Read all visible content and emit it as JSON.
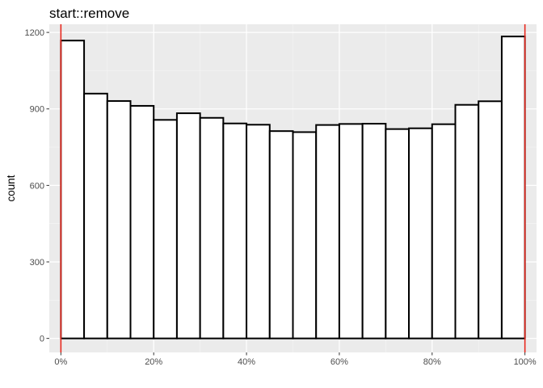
{
  "chart_data": {
    "type": "histogram",
    "title": "start::remove",
    "xlabel": "",
    "ylabel": "count",
    "xlim": [
      -0.025,
      1.025
    ],
    "ylim": [
      -55,
      1232
    ],
    "bin_width": 0.05,
    "bins": [
      {
        "x0": 0.0,
        "x1": 0.05,
        "count": 1168
      },
      {
        "x0": 0.05,
        "x1": 0.1,
        "count": 960
      },
      {
        "x0": 0.1,
        "x1": 0.15,
        "count": 931
      },
      {
        "x0": 0.15,
        "x1": 0.2,
        "count": 912
      },
      {
        "x0": 0.2,
        "x1": 0.25,
        "count": 857
      },
      {
        "x0": 0.25,
        "x1": 0.3,
        "count": 883
      },
      {
        "x0": 0.3,
        "x1": 0.35,
        "count": 865
      },
      {
        "x0": 0.35,
        "x1": 0.4,
        "count": 843
      },
      {
        "x0": 0.4,
        "x1": 0.45,
        "count": 838
      },
      {
        "x0": 0.45,
        "x1": 0.5,
        "count": 813
      },
      {
        "x0": 0.5,
        "x1": 0.55,
        "count": 809
      },
      {
        "x0": 0.55,
        "x1": 0.6,
        "count": 837
      },
      {
        "x0": 0.6,
        "x1": 0.65,
        "count": 841
      },
      {
        "x0": 0.65,
        "x1": 0.7,
        "count": 842
      },
      {
        "x0": 0.7,
        "x1": 0.75,
        "count": 821
      },
      {
        "x0": 0.75,
        "x1": 0.8,
        "count": 824
      },
      {
        "x0": 0.8,
        "x1": 0.85,
        "count": 840
      },
      {
        "x0": 0.85,
        "x1": 0.9,
        "count": 916
      },
      {
        "x0": 0.9,
        "x1": 0.95,
        "count": 930
      },
      {
        "x0": 0.95,
        "x1": 1.0,
        "count": 1184
      }
    ],
    "x_ticks": [
      {
        "value": 0.0,
        "label": "0%"
      },
      {
        "value": 0.2,
        "label": "20%"
      },
      {
        "value": 0.4,
        "label": "40%"
      },
      {
        "value": 0.6,
        "label": "60%"
      },
      {
        "value": 0.8,
        "label": "80%"
      },
      {
        "value": 1.0,
        "label": "100%"
      }
    ],
    "y_ticks": [
      {
        "value": 0,
        "label": "0"
      },
      {
        "value": 300,
        "label": "300"
      },
      {
        "value": 600,
        "label": "600"
      },
      {
        "value": 900,
        "label": "900"
      },
      {
        "value": 1200,
        "label": "1200"
      }
    ],
    "reference_lines": [
      {
        "axis": "x",
        "value": 0.0
      },
      {
        "axis": "x",
        "value": 1.0
      }
    ],
    "grid": true,
    "colors": {
      "panel_background": "#ebebeb",
      "grid_major": "#ffffff",
      "grid_minor": "#f5f5f5",
      "bar_fill": "#ffffff",
      "bar_outline": "#000000",
      "reference_line": "#e8281e",
      "tick_mark": "#333333"
    }
  }
}
